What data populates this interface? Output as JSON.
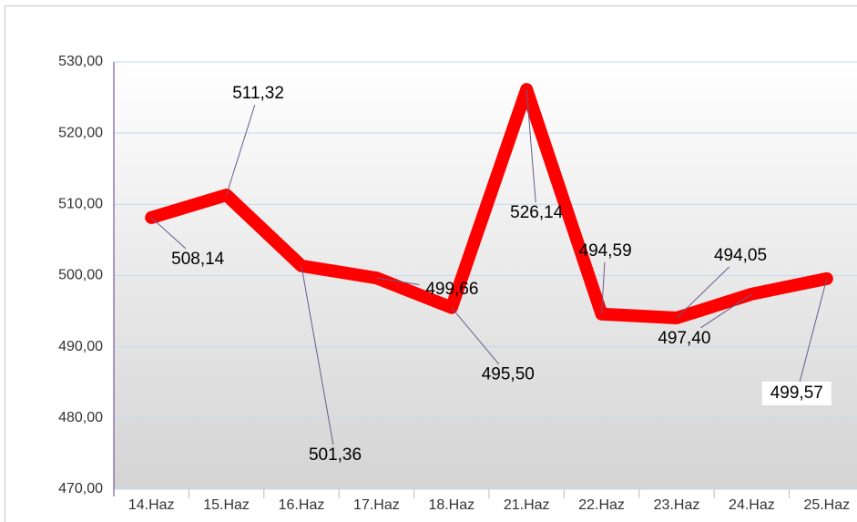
{
  "chart_data": {
    "type": "line",
    "categories": [
      "14.Haz",
      "15.Haz",
      "16.Haz",
      "17.Haz",
      "18.Haz",
      "21.Haz",
      "22.Haz",
      "23.Haz",
      "24.Haz",
      "25.Haz"
    ],
    "series": [
      {
        "color": "#ff0000",
        "values": [
          508.14,
          511.32,
          501.36,
          499.66,
          495.5,
          526.14,
          494.59,
          494.05,
          497.4,
          499.57
        ],
        "value_labels": [
          "508,14",
          "511,32",
          "501,36",
          "499,66",
          "495,50",
          "526,14",
          "494,59",
          "494,05",
          "497,40",
          "499,57"
        ]
      }
    ],
    "ylim": [
      470,
      530
    ],
    "yticks": [
      {
        "value": 470,
        "label": "470,00"
      },
      {
        "value": 480,
        "label": "480,00"
      },
      {
        "value": 490,
        "label": "490,00"
      },
      {
        "value": 500,
        "label": "500,00"
      },
      {
        "value": 510,
        "label": "510,00"
      },
      {
        "value": 520,
        "label": "520,00"
      },
      {
        "value": 530,
        "label": "530,00"
      }
    ],
    "grid": true
  }
}
